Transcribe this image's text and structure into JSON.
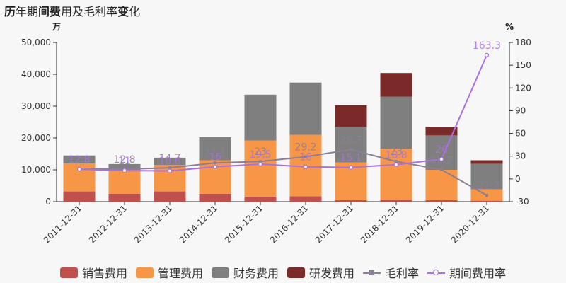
{
  "title_parts": [
    "历",
    "年期",
    "间费",
    "用及毛利率",
    "变",
    "化"
  ],
  "chart_data": {
    "type": "bar",
    "categories": [
      "2011-12-31",
      "2012-12-31",
      "2013-12-31",
      "2014-12-31",
      "2015-12-31",
      "2016-12-31",
      "2017-12-31",
      "2018-12-31",
      "2019-12-31",
      "2020-12-31"
    ],
    "stacked_series": [
      {
        "name": "销售费用",
        "color": "#c0504d",
        "values": [
          3200,
          2500,
          3200,
          2500,
          1600,
          1700,
          500,
          600,
          500,
          300
        ]
      },
      {
        "name": "管理费用",
        "color": "#f79646",
        "values": [
          8800,
          7500,
          8300,
          10500,
          17600,
          19300,
          11800,
          16000,
          9500,
          3600
        ]
      },
      {
        "name": "财务费用",
        "color": "#7f7f7f",
        "values": [
          2500,
          1800,
          2300,
          7300,
          14400,
          16400,
          11200,
          16400,
          10800,
          8000
        ]
      },
      {
        "name": "研发费用",
        "color": "#7b2a2a",
        "values": [
          0,
          0,
          0,
          0,
          0,
          0,
          6800,
          7400,
          2700,
          1100
        ]
      }
    ],
    "line_series": [
      {
        "name": "毛利率",
        "color": "#8a7f95",
        "values": [
          12.9,
          12.8,
          14.7,
          21.1,
          23,
          29.2,
          38.7,
          23,
          12.2,
          -21.7
        ],
        "labels": [
          "12.9",
          "12.8",
          "14.7",
          "21.1",
          "23",
          "29.2",
          "38.7",
          "23",
          "12.2",
          "-21.7"
        ]
      },
      {
        "name": "期间费用率",
        "color": "#a970e0",
        "values": [
          12.8,
          11,
          10.6,
          16,
          19.5,
          16,
          15.1,
          18.8,
          26,
          163.3
        ],
        "labels": [
          "12.8",
          "11",
          "10.6",
          "16",
          "19.5",
          "16",
          "15.1",
          "18.8",
          "26",
          "163.3"
        ]
      }
    ],
    "y_left": {
      "unit": "万",
      "min": 0,
      "max": 50000,
      "ticks": [
        "0",
        "10,000",
        "20,000",
        "30,000",
        "40,000",
        "50,000"
      ]
    },
    "y_right": {
      "unit": "%",
      "min": -30,
      "max": 180,
      "ticks": [
        "-30",
        "0",
        "30",
        "60",
        "90",
        "120",
        "150",
        "180"
      ]
    },
    "legend_placement": "bottom"
  }
}
